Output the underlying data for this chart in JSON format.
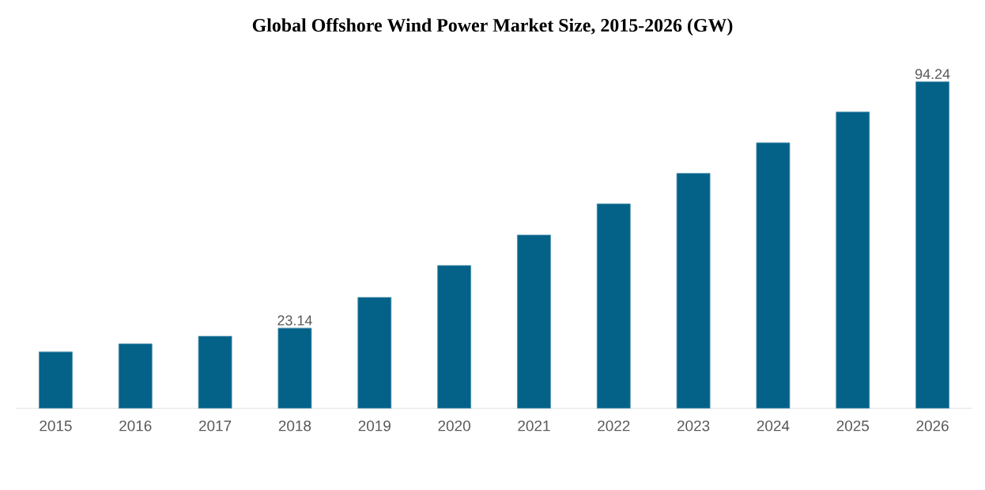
{
  "chart_data": {
    "type": "bar",
    "title": "Global Offshore Wind Power Market Size, 2015-2026 (GW)",
    "categories": [
      "2015",
      "2016",
      "2017",
      "2018",
      "2019",
      "2020",
      "2021",
      "2022",
      "2023",
      "2024",
      "2025",
      "2026"
    ],
    "values": [
      16.3,
      18.6,
      20.8,
      23.14,
      32.0,
      41.2,
      50.0,
      59.0,
      67.8,
      76.6,
      85.5,
      94.24
    ],
    "value_labels": [
      null,
      null,
      null,
      "23.14",
      null,
      null,
      null,
      null,
      null,
      null,
      null,
      "94.24"
    ],
    "color": "#046289"
  }
}
